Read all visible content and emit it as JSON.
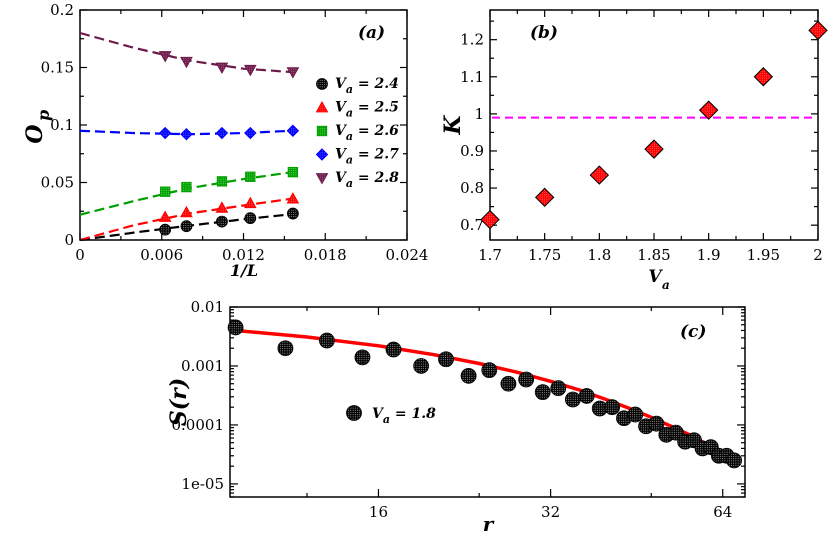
{
  "chart_data": [
    {
      "panel": "a",
      "type": "scatter",
      "panel_label": "(a)",
      "xlabel": "1/L",
      "ylabel_main": "O",
      "ylabel_sub": "p",
      "xlim": [
        0,
        0.024
      ],
      "ylim": [
        0,
        0.2
      ],
      "xticks": [
        0,
        0.006,
        0.012,
        0.018,
        0.024
      ],
      "xtick_labels": [
        "0",
        "0.006",
        "0.012",
        "0.018",
        "0.024"
      ],
      "yticks": [
        0,
        0.05,
        0.1,
        0.15,
        0.2
      ],
      "ytick_labels": [
        "0",
        "0.05",
        "0.1",
        "0.15",
        "0.2"
      ],
      "legend_position": "right",
      "series": [
        {
          "name": "V",
          "sub": "a",
          "value_text": " = 2.4",
          "marker": "dotted-circle",
          "color": "#000000",
          "x": [
            0.00625,
            0.0078125,
            0.0104167,
            0.0125,
            0.015625
          ],
          "y": [
            0.009,
            0.012,
            0.016,
            0.019,
            0.023
          ],
          "fit_x": [
            0,
            0.004,
            0.008,
            0.012,
            0.0156
          ],
          "fit_y": [
            0.0,
            0.0065,
            0.0125,
            0.018,
            0.0225
          ]
        },
        {
          "name": "V",
          "sub": "a",
          "value_text": " = 2.5",
          "marker": "triangle",
          "color": "#ff0000",
          "x": [
            0.00625,
            0.0078125,
            0.0104167,
            0.0125,
            0.015625
          ],
          "y": [
            0.02,
            0.024,
            0.028,
            0.032,
            0.036
          ],
          "fit_x": [
            0,
            0.004,
            0.008,
            0.012,
            0.0156
          ],
          "fit_y": [
            0.0,
            0.013,
            0.023,
            0.03,
            0.036
          ]
        },
        {
          "name": "V",
          "sub": "a",
          "value_text": " = 2.6",
          "marker": "square",
          "color": "#00a000",
          "x": [
            0.00625,
            0.0078125,
            0.0104167,
            0.0125,
            0.015625
          ],
          "y": [
            0.042,
            0.046,
            0.051,
            0.055,
            0.059
          ],
          "fit_x": [
            0,
            0.004,
            0.008,
            0.012,
            0.0156
          ],
          "fit_y": [
            0.022,
            0.034,
            0.045,
            0.053,
            0.059
          ]
        },
        {
          "name": "V",
          "sub": "a",
          "value_text": " = 2.7",
          "marker": "diamond",
          "color": "#0000ff",
          "x": [
            0.00625,
            0.0078125,
            0.0104167,
            0.0125,
            0.015625
          ],
          "y": [
            0.093,
            0.092,
            0.093,
            0.093,
            0.095
          ],
          "fit_x": [
            0,
            0.004,
            0.008,
            0.012,
            0.0156
          ],
          "fit_y": [
            0.095,
            0.093,
            0.092,
            0.093,
            0.095
          ]
        },
        {
          "name": "V",
          "sub": "a",
          "value_text": " = 2.8",
          "marker": "triangle-down",
          "color": "#6b1a4a",
          "x": [
            0.00625,
            0.0078125,
            0.0104167,
            0.0125,
            0.015625
          ],
          "y": [
            0.16,
            0.155,
            0.15,
            0.148,
            0.146
          ],
          "fit_x": [
            0,
            0.004,
            0.008,
            0.012,
            0.0156
          ],
          "fit_y": [
            0.18,
            0.167,
            0.156,
            0.149,
            0.146
          ]
        }
      ]
    },
    {
      "panel": "b",
      "type": "scatter",
      "panel_label": "(b)",
      "xlabel_main": "V",
      "xlabel_sub": "a",
      "ylabel": "K",
      "xlim": [
        1.7,
        2.0
      ],
      "ylim": [
        0.66,
        1.28
      ],
      "xticks": [
        1.7,
        1.75,
        1.8,
        1.85,
        1.9,
        1.95,
        2.0
      ],
      "xtick_labels": [
        "1.7",
        "1.75",
        "1.8",
        "1.85",
        "1.9",
        "1.95",
        "2"
      ],
      "yticks": [
        0.7,
        0.8,
        0.9,
        1.0,
        1.1,
        1.2
      ],
      "ytick_labels": [
        "0.7",
        "0.8",
        "0.9",
        "1",
        "1.1",
        "1.2"
      ],
      "series": [
        {
          "name": "K",
          "marker": "diamond",
          "color": "#ff0000",
          "x": [
            1.7,
            1.75,
            1.8,
            1.85,
            1.9,
            1.95,
            2.0
          ],
          "y": [
            0.715,
            0.775,
            0.835,
            0.905,
            1.01,
            1.1,
            1.225
          ]
        }
      ],
      "hline": {
        "y": 0.99,
        "color": "#ff00ff",
        "style": "dashed"
      }
    },
    {
      "panel": "c",
      "type": "scatter",
      "panel_label": "(c)",
      "xlabel": "r",
      "ylabel": "S(r)",
      "xscale": "log",
      "yscale": "log",
      "xlim": [
        8.8,
        70
      ],
      "ylim": [
        6e-06,
        0.01
      ],
      "xticks": [
        16,
        32,
        64
      ],
      "xtick_labels": [
        "16",
        "32",
        "64"
      ],
      "yticks": [
        1e-05,
        0.0001,
        0.001,
        0.01
      ],
      "ytick_labels": [
        "1e-05",
        "0.0001",
        "0.001",
        "0.01"
      ],
      "legend": {
        "name": "V",
        "sub": "a",
        "value_text": " = 1.8",
        "position": "left-center"
      },
      "series": [
        {
          "name": "data",
          "marker": "dotted-circle",
          "color": "#000000",
          "x": [
            9,
            11,
            13,
            15,
            17,
            19,
            21,
            23,
            25,
            27,
            29,
            31,
            33,
            35,
            37,
            39,
            41,
            43,
            45,
            47,
            49,
            51,
            53,
            55,
            57,
            59,
            61,
            63,
            65,
            67
          ],
          "y": [
            0.0045,
            0.002,
            0.0027,
            0.0014,
            0.0019,
            0.001,
            0.0013,
            0.00068,
            0.00085,
            0.0005,
            0.00059,
            0.00036,
            0.00042,
            0.00027,
            0.00031,
            0.00019,
            0.0002,
            0.00013,
            0.00015,
            9.5e-05,
            0.000105,
            6.8e-05,
            7.4e-05,
            5.2e-05,
            5.5e-05,
            4e-05,
            4.2e-05,
            3e-05,
            3e-05,
            2.5e-05
          ]
        },
        {
          "name": "fit",
          "type": "line",
          "color": "#ff0000",
          "x": [
            9,
            12,
            16,
            20,
            24,
            28,
            32,
            36,
            40,
            44,
            48,
            52,
            56,
            60,
            64,
            67
          ],
          "y": [
            0.004,
            0.0031,
            0.0022,
            0.00155,
            0.0011,
            0.00078,
            0.00055,
            0.00039,
            0.00027,
            0.00019,
            0.000135,
            9.5e-05,
            6.8e-05,
            4.7e-05,
            3.2e-05,
            2.2e-05
          ]
        }
      ]
    }
  ]
}
